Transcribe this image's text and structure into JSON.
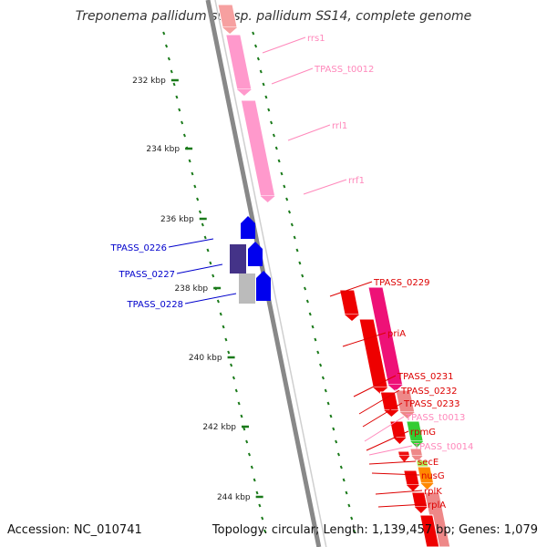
{
  "title": "Treponema pallidum subsp. pallidum SS14, complete genome",
  "footer": {
    "accession": "Accession: NC_010741",
    "summary": "Topology: circular; Length: 1,139,457 bp; Genes: 1,079"
  },
  "colors": {
    "backbone": "#888888",
    "tick": "#1a7a1a",
    "rna": "#ff99cc",
    "forward_red": "#ee0000",
    "blue": "#0000ee",
    "label_red": "#dd0000",
    "label_pink": "#ff88bb",
    "label_blue": "#0000cc"
  },
  "kbp_labels": [
    "232 kbp",
    "234 kbp",
    "236 kbp",
    "238 kbp",
    "240 kbp",
    "242 kbp",
    "244 kbp"
  ],
  "features": [
    {
      "name": "rrs1",
      "color": "#ff88bb"
    },
    {
      "name": "TPASS_t0012",
      "color": "#ff88bb"
    },
    {
      "name": "rrl1",
      "color": "#ff88bb"
    },
    {
      "name": "rrf1",
      "color": "#ff88bb"
    },
    {
      "name": "TPASS_0226",
      "color": "#0000cc"
    },
    {
      "name": "TPASS_0227",
      "color": "#0000cc"
    },
    {
      "name": "TPASS_0228",
      "color": "#0000cc"
    },
    {
      "name": "TPASS_0229",
      "color": "#dd0000"
    },
    {
      "name": "priA",
      "color": "#dd0000"
    },
    {
      "name": "TPASS_0231",
      "color": "#dd0000"
    },
    {
      "name": "TPASS_0232",
      "color": "#dd0000"
    },
    {
      "name": "TPASS_0233",
      "color": "#dd0000"
    },
    {
      "name": "TPASS_t0013",
      "color": "#ff88bb"
    },
    {
      "name": "rpmG",
      "color": "#dd0000"
    },
    {
      "name": "TPASS_t0014",
      "color": "#ff88bb"
    },
    {
      "name": "secE",
      "color": "#dd0000"
    },
    {
      "name": "nusG",
      "color": "#dd0000"
    },
    {
      "name": "rplK",
      "color": "#dd0000"
    },
    {
      "name": "rplA",
      "color": "#dd0000"
    }
  ]
}
